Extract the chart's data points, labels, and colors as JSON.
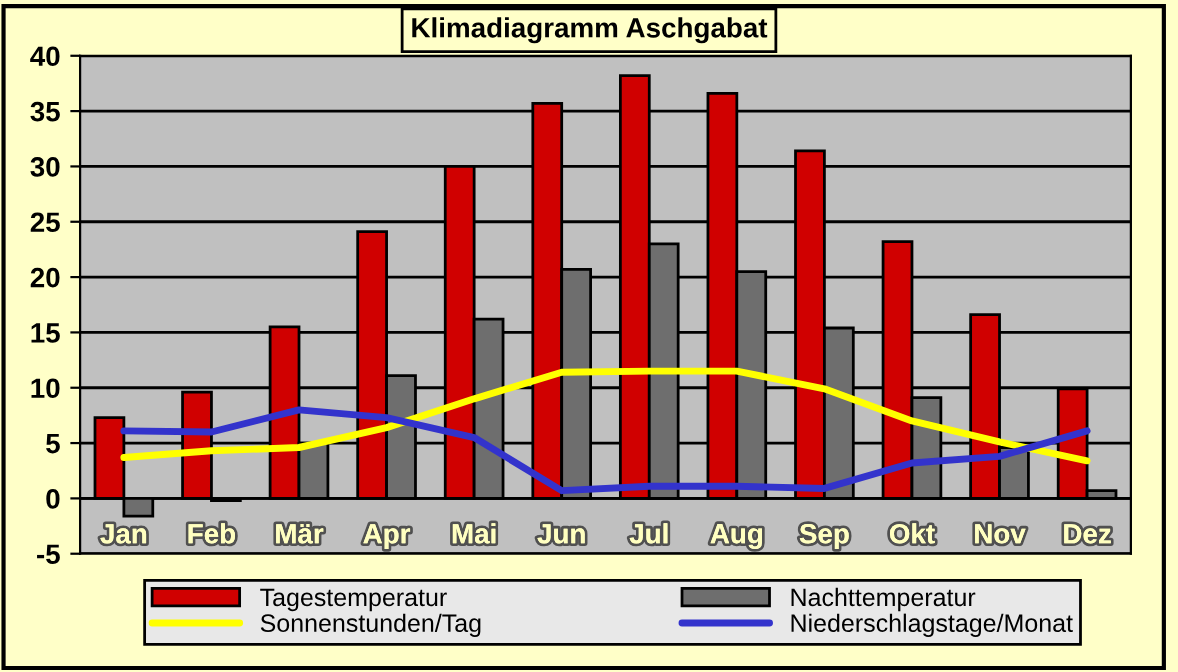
{
  "chart_data": {
    "type": "bar",
    "title": "Klimadiagramm Aschgabat",
    "categories": [
      "Jan",
      "Feb",
      "Mär",
      "Apr",
      "Mai",
      "Jun",
      "Jul",
      "Aug",
      "Sep",
      "Okt",
      "Nov",
      "Dez"
    ],
    "series": [
      {
        "name": "Tagestemperatur",
        "color": "#d00000",
        "values": [
          7.3,
          9.6,
          15.5,
          24.1,
          30.0,
          35.7,
          38.2,
          36.6,
          31.4,
          23.2,
          16.6,
          9.9
        ]
      },
      {
        "name": "Nachttemperatur",
        "color": "#6e6e6e",
        "values": [
          -1.6,
          -0.2,
          5.0,
          11.1,
          16.2,
          20.7,
          23.0,
          20.5,
          15.4,
          9.1,
          4.6,
          0.7
        ]
      },
      {
        "name": "Sonnenstunden/Tag",
        "type": "line",
        "color": "#ffff00",
        "values": [
          3.7,
          4.3,
          4.6,
          6.4,
          9.0,
          11.4,
          11.5,
          11.5,
          9.9,
          7.0,
          5.1,
          3.4
        ]
      },
      {
        "name": "Niederschlagstage/Monat",
        "type": "line",
        "color": "#3333cc",
        "values": [
          6.1,
          6.0,
          8.0,
          7.3,
          5.5,
          0.7,
          1.1,
          1.1,
          0.9,
          3.2,
          3.8,
          6.1
        ]
      }
    ],
    "ylim": [
      -5,
      40
    ],
    "yticks": [
      -5,
      0,
      5,
      10,
      15,
      20,
      25,
      30,
      35,
      40
    ],
    "grid": "y",
    "legend": "bottom",
    "marker": "none",
    "line_style": "solid"
  }
}
